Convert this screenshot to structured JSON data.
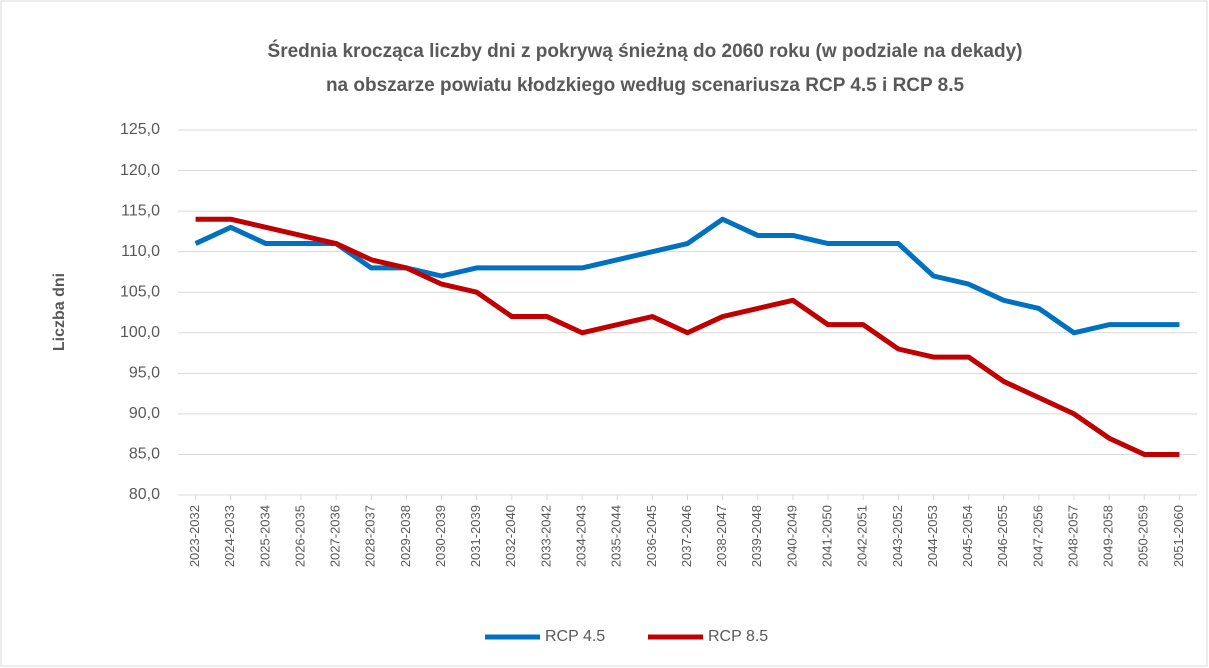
{
  "chart_data": {
    "type": "line",
    "title": [
      "Średnia krocząca liczby dni z pokrywą śnieżną do 2060 roku (w podziale na dekady)",
      "na obszarze powiatu kłodzkiego według scenariusza RCP 4.5 i RCP 8.5"
    ],
    "y_label": "Liczba dni",
    "categories": [
      "2023-2032",
      "2024-2033",
      "2025-2034",
      "2026-2035",
      "2027-2036",
      "2028-2037",
      "2029-2038",
      "2030-2039",
      "2031-2039",
      "2032-2040",
      "2033-2042",
      "2034-2043",
      "2035-2044",
      "2036-2045",
      "2037-2046",
      "2038-2047",
      "2039-2048",
      "2040-2049",
      "2041-2050",
      "2042-2051",
      "2043-2052",
      "2044-2053",
      "2045-2054",
      "2046-2055",
      "2047-2056",
      "2048-2057",
      "2049-2058",
      "2050-2059",
      "2051-2060"
    ],
    "series": [
      {
        "name": "RCP 4.5",
        "color": "#0070c0",
        "values": [
          111,
          113,
          111,
          111,
          111,
          108,
          108,
          107,
          108,
          108,
          108,
          108,
          109,
          110,
          111,
          114,
          112,
          112,
          111,
          111,
          111,
          107,
          106,
          104,
          103,
          100,
          101,
          101,
          101
        ]
      },
      {
        "name": "RCP 8.5",
        "color": "#c00000",
        "values": [
          114,
          114,
          113,
          112,
          111,
          109,
          108,
          106,
          105,
          102,
          102,
          100,
          101,
          102,
          100,
          102,
          103,
          104,
          101,
          101,
          98,
          97,
          97,
          94,
          92,
          90,
          87,
          85,
          85
        ]
      }
    ],
    "ylim": [
      80,
      125
    ],
    "yticks": [
      {
        "value": 80,
        "label": "80,0"
      },
      {
        "value": 85,
        "label": "85,0"
      },
      {
        "value": 90,
        "label": "90,0"
      },
      {
        "value": 95,
        "label": "95,0"
      },
      {
        "value": 100,
        "label": "100,0"
      },
      {
        "value": 105,
        "label": "105,0"
      },
      {
        "value": 110,
        "label": "110,0"
      },
      {
        "value": 115,
        "label": "115,0"
      },
      {
        "value": 120,
        "label": "120,0"
      },
      {
        "value": 125,
        "label": "125,0"
      }
    ],
    "grid": true,
    "legend": "bottom"
  }
}
